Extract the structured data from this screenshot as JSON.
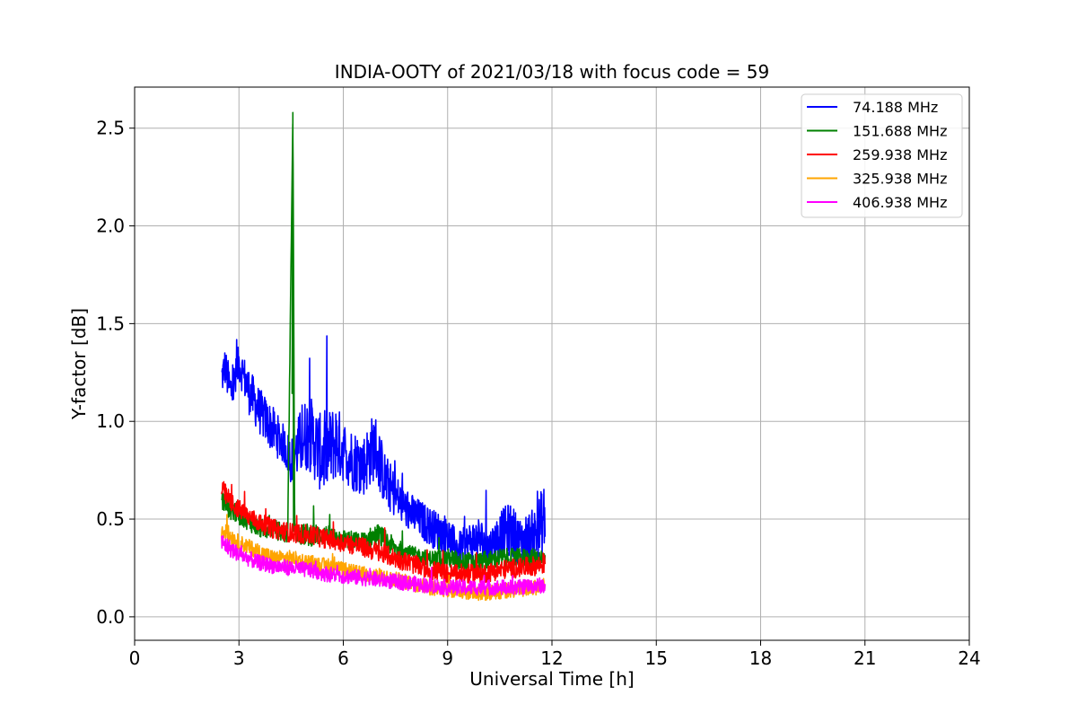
{
  "chart_data": {
    "type": "line",
    "title": "INDIA-OOTY of 2021/03/18 with focus code = 59",
    "xlabel": "Universal Time [h]",
    "ylabel": "Y-factor [dB]",
    "xlim": [
      0,
      24
    ],
    "ylim": [
      -0.12,
      2.71
    ],
    "xticks": [
      0,
      3,
      6,
      9,
      12,
      15,
      18,
      21,
      24
    ],
    "yticks": [
      0.0,
      0.5,
      1.0,
      1.5,
      2.0,
      2.5
    ],
    "xtick_labels": [
      "0",
      "3",
      "6",
      "9",
      "12",
      "15",
      "18",
      "21",
      "24"
    ],
    "ytick_labels": [
      "0.0",
      "0.5",
      "1.0",
      "1.5",
      "2.0",
      "2.5"
    ],
    "grid": true,
    "legend_position": "top-right",
    "series": [
      {
        "name": " 74.188 MHz",
        "color": "#0000ff",
        "x": [
          2.5,
          2.6,
          2.75,
          2.9,
          3.0,
          3.3,
          3.6,
          4.0,
          4.3,
          4.5,
          4.8,
          5.0,
          5.4,
          5.8,
          6.0,
          6.3,
          6.6,
          6.9,
          7.2,
          7.5,
          7.8,
          8.2,
          8.6,
          9.0,
          9.3,
          9.6,
          9.9,
          10.2,
          10.5,
          10.8,
          11.1,
          11.5,
          11.8
        ],
        "y": [
          1.22,
          1.28,
          1.15,
          1.2,
          1.3,
          1.15,
          1.05,
          0.95,
          0.88,
          0.8,
          0.9,
          0.95,
          0.82,
          0.9,
          0.85,
          0.8,
          0.78,
          0.88,
          0.7,
          0.62,
          0.55,
          0.5,
          0.45,
          0.42,
          0.35,
          0.38,
          0.4,
          0.35,
          0.42,
          0.45,
          0.38,
          0.42,
          0.5
        ],
        "spread": [
          0.1,
          0.1,
          0.12,
          0.12,
          0.1,
          0.12,
          0.12,
          0.12,
          0.1,
          0.12,
          0.18,
          0.2,
          0.2,
          0.2,
          0.16,
          0.16,
          0.16,
          0.18,
          0.14,
          0.12,
          0.1,
          0.1,
          0.1,
          0.1,
          0.08,
          0.1,
          0.12,
          0.1,
          0.12,
          0.14,
          0.12,
          0.14,
          0.2
        ]
      },
      {
        "name": "151.688 MHz",
        "color": "#008000",
        "x": [
          2.5,
          2.8,
          3.2,
          3.6,
          4.0,
          4.4,
          4.55,
          4.6,
          4.7,
          5.0,
          5.5,
          6.0,
          6.5,
          7.0,
          7.5,
          8.0,
          8.5,
          9.0,
          9.5,
          10.0,
          10.5,
          11.0,
          11.5,
          11.8
        ],
        "y": [
          0.6,
          0.55,
          0.5,
          0.45,
          0.45,
          0.42,
          2.58,
          0.45,
          0.42,
          0.42,
          0.42,
          0.4,
          0.38,
          0.42,
          0.35,
          0.32,
          0.3,
          0.3,
          0.28,
          0.28,
          0.3,
          0.3,
          0.3,
          0.3
        ],
        "spread": [
          0.06,
          0.06,
          0.05,
          0.05,
          0.05,
          0.05,
          0.0,
          0.05,
          0.05,
          0.06,
          0.05,
          0.05,
          0.05,
          0.06,
          0.05,
          0.04,
          0.04,
          0.05,
          0.05,
          0.05,
          0.05,
          0.05,
          0.05,
          0.05
        ]
      },
      {
        "name": "259.938 MHz",
        "color": "#ff0000",
        "x": [
          2.5,
          2.8,
          3.2,
          3.6,
          4.0,
          4.5,
          5.0,
          5.5,
          6.0,
          6.5,
          7.0,
          7.5,
          8.0,
          8.5,
          9.0,
          9.5,
          10.0,
          10.5,
          11.0,
          11.5,
          11.8
        ],
        "y": [
          0.65,
          0.58,
          0.52,
          0.48,
          0.45,
          0.43,
          0.42,
          0.4,
          0.38,
          0.36,
          0.33,
          0.3,
          0.27,
          0.24,
          0.22,
          0.22,
          0.22,
          0.24,
          0.25,
          0.26,
          0.27
        ],
        "spread": [
          0.06,
          0.05,
          0.05,
          0.05,
          0.05,
          0.05,
          0.05,
          0.05,
          0.05,
          0.05,
          0.05,
          0.05,
          0.05,
          0.05,
          0.05,
          0.05,
          0.05,
          0.05,
          0.05,
          0.05,
          0.05
        ]
      },
      {
        "name": "325.938 MHz",
        "color": "#ffa500",
        "x": [
          2.5,
          3.0,
          3.5,
          4.0,
          4.5,
          5.0,
          5.5,
          6.0,
          6.5,
          7.0,
          7.5,
          8.0,
          8.5,
          9.0,
          9.5,
          10.0,
          10.5,
          11.0,
          11.5,
          11.8
        ],
        "y": [
          0.45,
          0.38,
          0.34,
          0.3,
          0.3,
          0.28,
          0.26,
          0.24,
          0.22,
          0.21,
          0.19,
          0.17,
          0.15,
          0.14,
          0.13,
          0.12,
          0.13,
          0.14,
          0.15,
          0.16
        ],
        "spread": [
          0.05,
          0.04,
          0.04,
          0.04,
          0.04,
          0.04,
          0.04,
          0.04,
          0.04,
          0.04,
          0.04,
          0.04,
          0.04,
          0.04,
          0.04,
          0.04,
          0.04,
          0.04,
          0.04,
          0.04
        ]
      },
      {
        "name": "406.938 MHz",
        "color": "#ff00ff",
        "x": [
          2.5,
          3.0,
          3.5,
          4.0,
          4.5,
          5.0,
          5.5,
          6.0,
          6.5,
          7.0,
          7.5,
          8.0,
          8.5,
          9.0,
          9.5,
          10.0,
          10.5,
          11.0,
          11.5,
          11.8
        ],
        "y": [
          0.38,
          0.32,
          0.28,
          0.26,
          0.25,
          0.24,
          0.22,
          0.21,
          0.2,
          0.19,
          0.18,
          0.17,
          0.16,
          0.15,
          0.15,
          0.15,
          0.15,
          0.15,
          0.16,
          0.16
        ],
        "spread": [
          0.05,
          0.04,
          0.04,
          0.04,
          0.04,
          0.04,
          0.04,
          0.04,
          0.04,
          0.04,
          0.04,
          0.04,
          0.04,
          0.04,
          0.04,
          0.04,
          0.04,
          0.04,
          0.04,
          0.04
        ]
      }
    ]
  }
}
